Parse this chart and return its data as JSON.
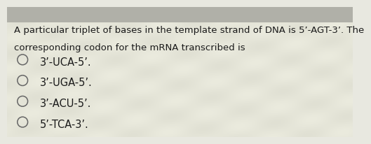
{
  "question_line1": "A particular triplet of bases in the template strand of DNA is 5’-AGT-3’. The",
  "question_line2": "corresponding codon for the mRNA transcribed is",
  "options": [
    "3’-UCA-5’.",
    "3’-UGA-5’.",
    "3’-ACU-5’.",
    "5’-TCA-3’."
  ],
  "background_color": "#e8e8e0",
  "text_color": "#1a1a1a",
  "question_fontsize": 9.5,
  "option_fontsize": 10.5,
  "circle_color": "#666666",
  "header_bg": "#c8c8c0",
  "wave_color_light": "#dcdcd0",
  "wave_color_dark": "#d0d0c4"
}
